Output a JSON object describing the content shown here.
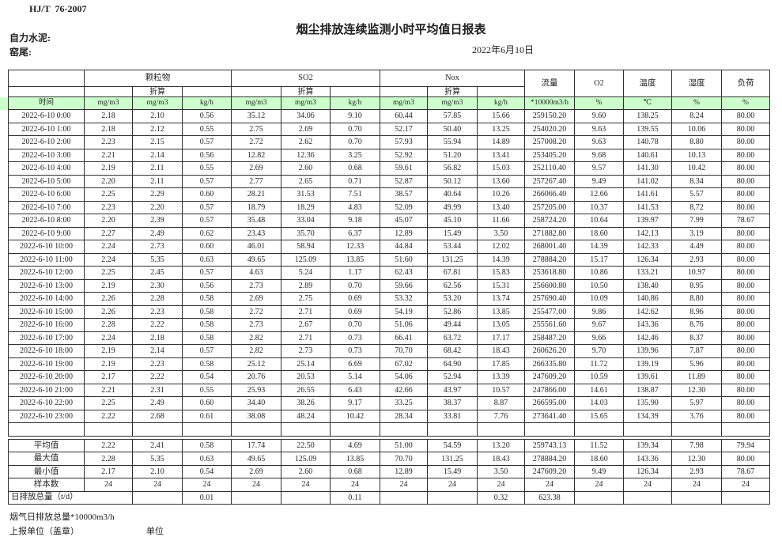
{
  "page": {
    "standard_no": "HJ/T  76-2007",
    "title": "烟尘排放连续监测小时平均值日报表",
    "company": "自力水泥:",
    "location": "窑尾:",
    "date": "2022年6月10日"
  },
  "table": {
    "time_label": "时间",
    "converted_label": "折算",
    "group_headers": {
      "pm": "颗粒物",
      "so2": "SO2",
      "nox": "Nox",
      "flow": "流量",
      "o2": "O2",
      "temp": "温度",
      "humidity": "湿度",
      "load": "负荷"
    },
    "unit_row": [
      "mg/m3",
      "mg/m3",
      "kg/h",
      "mg/m3",
      "mg/m3",
      "kg/h",
      "mg/m3",
      "mg/m3",
      "kg/h",
      "*10000m3/h",
      "%",
      "℃",
      "%",
      "%"
    ],
    "rows": [
      {
        "time": "2022-6-10 0:00",
        "values": [
          "2.18",
          "2.10",
          "0.56",
          "35.12",
          "34.06",
          "9.10",
          "60.44",
          "57.85",
          "15.66",
          "259150.20",
          "9.60",
          "138.25",
          "8.24",
          "80.00"
        ]
      },
      {
        "time": "2022-6-10 1:00",
        "values": [
          "2.18",
          "2.12",
          "0.55",
          "2.75",
          "2.69",
          "0.70",
          "52.17",
          "50.40",
          "13.25",
          "254020.20",
          "9.63",
          "139.55",
          "10.06",
          "80.00"
        ]
      },
      {
        "time": "2022-6-10 2:00",
        "values": [
          "2.23",
          "2.15",
          "0.57",
          "2.72",
          "2.62",
          "0.70",
          "57.93",
          "55.94",
          "14.89",
          "257008.20",
          "9.63",
          "140.78",
          "8.80",
          "80.00"
        ]
      },
      {
        "time": "2022-6-10 3:00",
        "values": [
          "2.21",
          "2.14",
          "0.56",
          "12.82",
          "12.36",
          "3.25",
          "52.92",
          "51.20",
          "13.41",
          "253405.20",
          "9.68",
          "140.61",
          "10.13",
          "80.00"
        ]
      },
      {
        "time": "2022-6-10 4:00",
        "values": [
          "2.19",
          "2.11",
          "0.55",
          "2.69",
          "2.60",
          "0.68",
          "59.61",
          "56.82",
          "15.03",
          "252110.40",
          "9.57",
          "141.30",
          "10.42",
          "80.00"
        ]
      },
      {
        "time": "2022-6-10 5:00",
        "values": [
          "2.20",
          "2.11",
          "0.57",
          "2.77",
          "2.65",
          "0.71",
          "52.87",
          "50.12",
          "13.60",
          "257267.40",
          "9.49",
          "141.02",
          "8.34",
          "80.00"
        ]
      },
      {
        "time": "2022-6-10 6:00",
        "values": [
          "2.25",
          "2.29",
          "0.60",
          "28.21",
          "31.53",
          "7.51",
          "38.57",
          "40.64",
          "10.26",
          "266066.40",
          "12.66",
          "141.61",
          "5.57",
          "80.00"
        ]
      },
      {
        "time": "2022-6-10 7:00",
        "values": [
          "2.23",
          "2.20",
          "0.57",
          "18.79",
          "18.29",
          "4.83",
          "52.09",
          "49.99",
          "13.40",
          "257205.00",
          "10.37",
          "141.53",
          "8.72",
          "80.00"
        ]
      },
      {
        "time": "2022-6-10 8:00",
        "values": [
          "2.20",
          "2.39",
          "0.57",
          "35.48",
          "33.04",
          "9.18",
          "45.07",
          "45.10",
          "11.66",
          "258724.20",
          "10.64",
          "139.97",
          "7.99",
          "78.67"
        ]
      },
      {
        "time": "2022-6-10 9:00",
        "values": [
          "2.27",
          "2.49",
          "0.62",
          "23.43",
          "35.70",
          "6.37",
          "12.89",
          "15.49",
          "3.50",
          "271882.80",
          "18.60",
          "142.13",
          "3.19",
          "80.00"
        ]
      },
      {
        "time": "2022-6-10 10:00",
        "values": [
          "2.24",
          "2.73",
          "0.60",
          "46.01",
          "58.94",
          "12.33",
          "44.84",
          "53.44",
          "12.02",
          "268001.40",
          "14.39",
          "142.33",
          "4.49",
          "80.00"
        ]
      },
      {
        "time": "2022-6-10 11:00",
        "values": [
          "2.24",
          "5.35",
          "0.63",
          "49.65",
          "125.09",
          "13.85",
          "51.60",
          "131.25",
          "14.39",
          "278884.20",
          "15.17",
          "126.34",
          "2.93",
          "80.00"
        ]
      },
      {
        "time": "2022-6-10 12:00",
        "values": [
          "2.25",
          "2.45",
          "0.57",
          "4.63",
          "5.24",
          "1.17",
          "62.43",
          "67.81",
          "15.83",
          "253618.80",
          "10.86",
          "133.21",
          "10.97",
          "80.00"
        ]
      },
      {
        "time": "2022-6-10 13:00",
        "values": [
          "2.19",
          "2.30",
          "0.56",
          "2.73",
          "2.89",
          "0.70",
          "59.66",
          "62.56",
          "15.31",
          "256600.80",
          "10.50",
          "138.40",
          "8.95",
          "80.00"
        ]
      },
      {
        "time": "2022-6-10 14:00",
        "values": [
          "2.26",
          "2.28",
          "0.58",
          "2.69",
          "2.75",
          "0.69",
          "53.32",
          "53.20",
          "13.74",
          "257690.40",
          "10.09",
          "140.86",
          "8.80",
          "80.00"
        ]
      },
      {
        "time": "2022-6-10 15:00",
        "values": [
          "2.26",
          "2.23",
          "0.58",
          "2.72",
          "2.71",
          "0.69",
          "54.19",
          "52.86",
          "13.85",
          "255477.00",
          "9.86",
          "142.62",
          "8.96",
          "80.00"
        ]
      },
      {
        "time": "2022-6-10 16:00",
        "values": [
          "2.28",
          "2.22",
          "0.58",
          "2.73",
          "2.67",
          "0.70",
          "51.06",
          "49.44",
          "13.05",
          "255561.60",
          "9.67",
          "143.36",
          "8.76",
          "80.00"
        ]
      },
      {
        "time": "2022-6-10 17:00",
        "values": [
          "2.24",
          "2.18",
          "0.58",
          "2.82",
          "2.71",
          "0.73",
          "66.41",
          "63.72",
          "17.17",
          "258487.20",
          "9.66",
          "142.46",
          "8.37",
          "80.00"
        ]
      },
      {
        "time": "2022-6-10 18:00",
        "values": [
          "2.19",
          "2.14",
          "0.57",
          "2.82",
          "2.73",
          "0.73",
          "70.70",
          "68.42",
          "18.43",
          "260626.20",
          "9.70",
          "139.96",
          "7.87",
          "80.00"
        ]
      },
      {
        "time": "2022-6-10 19:00",
        "values": [
          "2.19",
          "2.23",
          "0.58",
          "25.12",
          "25.14",
          "6.69",
          "67.02",
          "64.90",
          "17.85",
          "266335.80",
          "11.72",
          "139.19",
          "5.96",
          "80.00"
        ]
      },
      {
        "time": "2022-6-10 20:00",
        "values": [
          "2.17",
          "2.22",
          "0.54",
          "20.76",
          "20.53",
          "5.14",
          "54.06",
          "52.94",
          "13.39",
          "247609.20",
          "10.59",
          "139.61",
          "11.89",
          "80.00"
        ]
      },
      {
        "time": "2022-6-10 21:00",
        "values": [
          "2.21",
          "2.31",
          "0.55",
          "25.93",
          "26.55",
          "6.43",
          "42.66",
          "43.97",
          "10.57",
          "247866.00",
          "14.61",
          "138.87",
          "12.30",
          "80.00"
        ]
      },
      {
        "time": "2022-6-10 22:00",
        "values": [
          "2.25",
          "2.49",
          "0.60",
          "34.40",
          "38.26",
          "9.17",
          "33.25",
          "38.37",
          "8.87",
          "266595.00",
          "14.03",
          "135.90",
          "5.97",
          "80.00"
        ]
      },
      {
        "time": "2022-6-10 23:00",
        "values": [
          "2.22",
          "2.68",
          "0.61",
          "38.08",
          "48.24",
          "10.42",
          "28.34",
          "33.81",
          "7.76",
          "273641.40",
          "15.65",
          "134.39",
          "3.76",
          "80.00"
        ]
      }
    ],
    "summary": [
      {
        "label": "平均值",
        "values": [
          "2.22",
          "2.41",
          "0.58",
          "17.74",
          "22.50",
          "4.69",
          "51.00",
          "54.59",
          "13.20",
          "259743.13",
          "11.52",
          "139.34",
          "7.98",
          "79.94"
        ]
      },
      {
        "label": "最大值",
        "values": [
          "2.28",
          "5.35",
          "0.63",
          "49.65",
          "125.09",
          "13.85",
          "70.70",
          "131.25",
          "18.43",
          "278884.20",
          "18.60",
          "143.36",
          "12.30",
          "80.00"
        ]
      },
      {
        "label": "最小值",
        "values": [
          "2.17",
          "2.10",
          "0.54",
          "2.69",
          "2.60",
          "0.68",
          "12.89",
          "15.49",
          "3.50",
          "247609.20",
          "9.49",
          "126.34",
          "2.93",
          "78.67"
        ]
      },
      {
        "label": "样本数",
        "values": [
          "24",
          "24",
          "24",
          "24",
          "24",
          "24",
          "24",
          "24",
          "24",
          "24",
          "24",
          "24",
          "24",
          "24"
        ]
      }
    ],
    "daily_total": {
      "label": "日排放总量（t/d）",
      "cells": [
        "",
        "0.01",
        "",
        "",
        "0.11",
        "",
        "",
        "0.32",
        "623.38",
        "",
        "",
        "",
        ""
      ]
    }
  },
  "footer": {
    "flue_total_label": "烟气日排放总量*10000m3/h",
    "report_unit_label": "上报单位（盖章）",
    "unit_label": "单位"
  },
  "colors": {
    "header_row_green": "#ccffcc"
  }
}
